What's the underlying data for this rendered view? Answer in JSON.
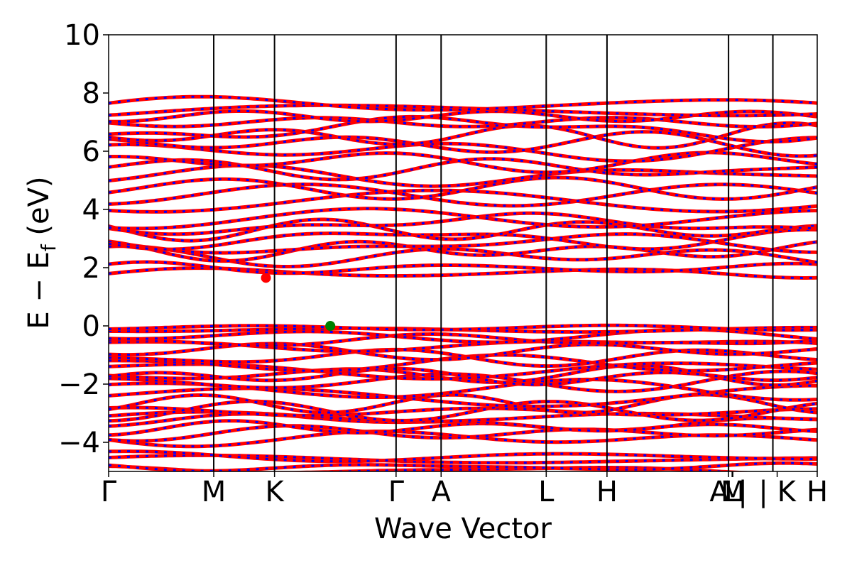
{
  "chart_data": {
    "type": "line",
    "title": "",
    "xlabel": "Wave Vector",
    "ylabel": "E − E_f (eV)",
    "ylabel_main": "E − E",
    "ylabel_sub": "f",
    "ylabel_tail": " (eV)",
    "ylim": [
      -5,
      10
    ],
    "yticks": [
      {
        "value": -4,
        "label": "−4"
      },
      {
        "value": -2,
        "label": "−2"
      },
      {
        "value": 0,
        "label": "0"
      },
      {
        "value": 2,
        "label": "2"
      },
      {
        "value": 4,
        "label": "4"
      },
      {
        "value": 6,
        "label": "6"
      },
      {
        "value": 8,
        "label": "8"
      },
      {
        "value": 10,
        "label": "10"
      }
    ],
    "xlim": [
      0,
      9.91
    ],
    "kpoints": [
      {
        "label": "Γ",
        "x": 0.0
      },
      {
        "label": "M",
        "x": 1.47
      },
      {
        "label": "K",
        "x": 2.32
      },
      {
        "label": "Γ",
        "x": 4.02
      },
      {
        "label": "A",
        "x": 4.65
      },
      {
        "label": "L",
        "x": 6.12
      },
      {
        "label": "H",
        "x": 6.97
      },
      {
        "label": "A |",
        "x": 8.67
      },
      {
        "label": "L",
        "x": 8.72
      },
      {
        "label": "M",
        "x": 8.73
      },
      {
        "label": "| K",
        "x": 9.35
      },
      {
        "label": "H",
        "x": 9.91
      }
    ],
    "vlines": [
      1.47,
      2.32,
      4.02,
      4.65,
      6.12,
      6.97,
      8.67,
      9.29
    ],
    "markers": [
      {
        "name": "CBM",
        "x": 2.2,
        "y": 1.65,
        "color": "#ff0000"
      },
      {
        "name": "VBM",
        "x": 3.1,
        "y": 0.0,
        "color": "#008000"
      }
    ],
    "band_groups": [
      {
        "base": -4.55,
        "n": 2,
        "spread": 0.1,
        "amp": 0.15
      },
      {
        "base": -4.9,
        "n": 2,
        "spread": 0.1,
        "amp": 0.1
      },
      {
        "base": -3.4,
        "n": 6,
        "spread": 0.18,
        "amp": 0.2
      },
      {
        "base": -2.3,
        "n": 6,
        "spread": 0.25,
        "amp": 0.25
      },
      {
        "base": -1.3,
        "n": 5,
        "spread": 0.22,
        "amp": 0.2
      },
      {
        "base": -0.5,
        "n": 3,
        "spread": 0.15,
        "amp": 0.15
      },
      {
        "base": -0.1,
        "n": 2,
        "spread": 0.08,
        "amp": 0.08
      },
      {
        "base": 1.9,
        "n": 2,
        "spread": 0.15,
        "amp": 0.2
      },
      {
        "base": 2.7,
        "n": 4,
        "spread": 0.2,
        "amp": 0.25
      },
      {
        "base": 3.5,
        "n": 3,
        "spread": 0.2,
        "amp": 0.25
      },
      {
        "base": 4.5,
        "n": 3,
        "spread": 0.22,
        "amp": 0.25
      },
      {
        "base": 5.4,
        "n": 3,
        "spread": 0.25,
        "amp": 0.25
      },
      {
        "base": 6.4,
        "n": 4,
        "spread": 0.25,
        "amp": 0.3
      },
      {
        "base": 7.3,
        "n": 4,
        "spread": 0.2,
        "amp": 0.3
      }
    ],
    "colors": {
      "band_primary": "#ff0000",
      "band_secondary": "#0000ff",
      "vline": "#000000",
      "axes": "#000000"
    },
    "grid": false
  }
}
